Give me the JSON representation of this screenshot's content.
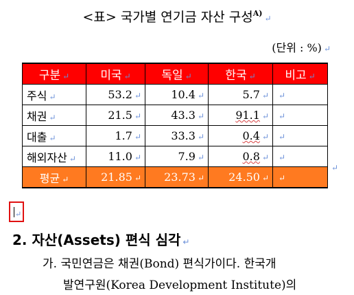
{
  "caption": {
    "text": "<표> 국가별 연기금 자산 구성",
    "superscript": "A)",
    "mark": "↵"
  },
  "unit_label": "(단위 : %)",
  "table": {
    "headers": [
      "구분",
      "미국",
      "독일",
      "한국",
      "비고"
    ],
    "rows": [
      {
        "label": "주식",
        "us": "53.2",
        "de": "10.4",
        "kr": "5.7",
        "note": ""
      },
      {
        "label": "채권",
        "us": "21.5",
        "de": "43.3",
        "kr": "91.1",
        "note": ""
      },
      {
        "label": "대출",
        "us": "1.7",
        "de": "33.3",
        "kr": "0.4",
        "note": ""
      },
      {
        "label": "해외자산",
        "us": "11.0",
        "de": "7.9",
        "kr": "0.8",
        "note": ""
      }
    ],
    "average": {
      "label": "평균",
      "us": "21.85",
      "de": "23.73",
      "kr": "24.50",
      "note": ""
    }
  },
  "heading": "2. 자산(Assets) 편식 심각",
  "paragraph": {
    "line1": "가. 국민연금은 채권(Bond) 편식가이다. 한국개",
    "line2": "발연구원(Korea Development Institute)의"
  },
  "colors": {
    "header_bg": "#ff0000",
    "average_bg": "#ff7a20",
    "cursor_box": "#e01010",
    "paragraph_mark": "#6a8fd8"
  }
}
